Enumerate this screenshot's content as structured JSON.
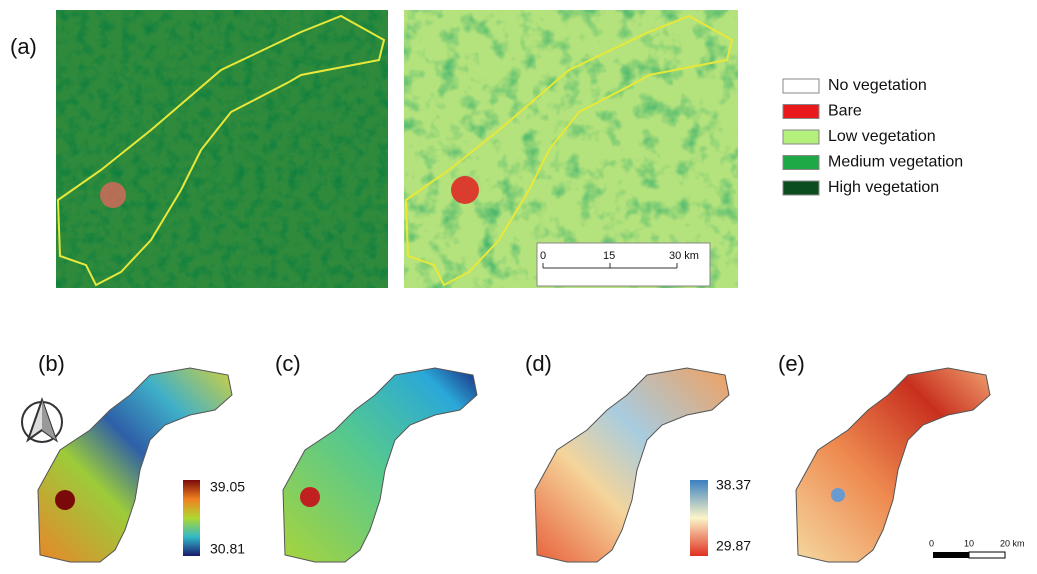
{
  "panels": [
    "(a)",
    "(b)",
    "(c)",
    "(d)",
    "(e)"
  ],
  "legend": [
    {
      "label": "No vegetation",
      "color": "#ffffff"
    },
    {
      "label": "Bare",
      "color": "#e8181c"
    },
    {
      "label": "Low vegetation",
      "color": "#b4f07c"
    },
    {
      "label": "Medium vegetation",
      "color": "#1fa846"
    },
    {
      "label": "High vegetation",
      "color": "#0b4d1e"
    }
  ],
  "scale_bar_a": [
    "0",
    "15",
    "30 km"
  ],
  "colorbar_b": {
    "max": "39.05",
    "min": "30.81"
  },
  "colorbar_d": {
    "max": "38.37",
    "min": "29.87"
  },
  "scale_bar_e": [
    "0",
    "10",
    "20 km"
  ]
}
